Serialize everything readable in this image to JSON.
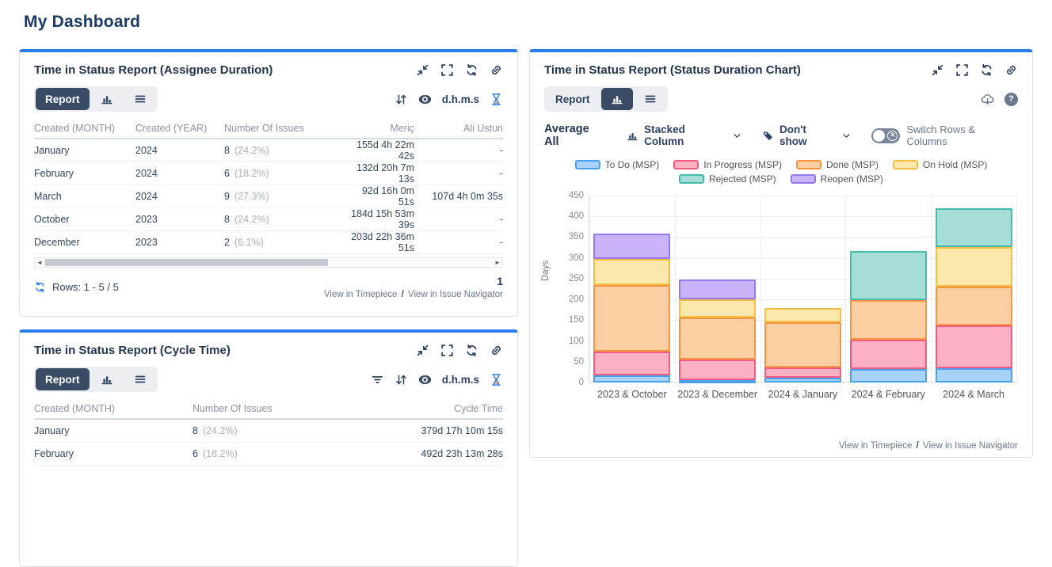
{
  "page": {
    "title": "My Dashboard"
  },
  "colors": {
    "accent_blue": "#2b7de9",
    "navy": "#22344e",
    "active_tab_bg": "#3a4b66",
    "muted": "#6b778c"
  },
  "panels": {
    "assignee": {
      "title": "Time in Status Report (Assignee Duration)",
      "action_icons": [
        "collapse-icon",
        "fullscreen-icon",
        "refresh-icon",
        "link-icon"
      ],
      "toolbar": {
        "report_label": "Report",
        "unit_label": "d.h.m.s",
        "right_icons": [
          "sort-icon",
          "eye-icon",
          "hourglass-icon"
        ]
      },
      "table": {
        "columns": [
          "Created (MONTH)",
          "Created (YEAR)",
          "Number Of Issues",
          "Meriç",
          "Ali Ustun"
        ],
        "rows": [
          {
            "month": "January",
            "year": "2024",
            "count": "8",
            "pct": "(24.2%)",
            "meric": "155d 4h 22m 42s",
            "ali": "-"
          },
          {
            "month": "February",
            "year": "2024",
            "count": "6",
            "pct": "(18.2%)",
            "meric": "132d 20h 7m 13s",
            "ali": "-"
          },
          {
            "month": "March",
            "year": "2024",
            "count": "9",
            "pct": "(27.3%)",
            "meric": "92d 16h 0m 51s",
            "ali": "107d 4h 0m 35s"
          },
          {
            "month": "October",
            "year": "2023",
            "count": "8",
            "pct": "(24.2%)",
            "meric": "184d 15h 53m 39s",
            "ali": "-"
          },
          {
            "month": "December",
            "year": "2023",
            "count": "2",
            "pct": "(6.1%)",
            "meric": "203d 22h 36m 51s",
            "ali": "-"
          }
        ]
      },
      "footer": {
        "rows_label": "Rows: 1 - 5 / 5",
        "page": "1",
        "link_timepiece": "View in Timepiece",
        "link_sep": "/",
        "link_navigator": "View in Issue Navigator"
      }
    },
    "cycle": {
      "title": "Time in Status Report (Cycle Time)",
      "action_icons": [
        "collapse-icon",
        "fullscreen-icon",
        "refresh-icon",
        "link-icon"
      ],
      "toolbar": {
        "report_label": "Report",
        "unit_label": "d.h.m.s",
        "right_icons": [
          "filter-icon",
          "sort-icon",
          "eye-icon",
          "hourglass-icon"
        ]
      },
      "table": {
        "columns": [
          "Created (MONTH)",
          "Number Of Issues",
          "Cycle Time"
        ],
        "rows": [
          {
            "month": "January",
            "count": "8",
            "pct": "(24.2%)",
            "cycle": "379d 17h 10m 15s"
          },
          {
            "month": "February",
            "count": "6",
            "pct": "(18.2%)",
            "cycle": "492d 23h 13m 28s"
          }
        ]
      }
    },
    "chart": {
      "title": "Time in Status Report (Status Duration Chart)",
      "action_icons": [
        "collapse-icon",
        "fullscreen-icon",
        "refresh-icon",
        "link-icon"
      ],
      "toolbar": {
        "report_label": "Report",
        "right_icons": [
          "cloud-download-icon",
          "help-icon"
        ],
        "help_glyph": "?"
      },
      "controls": {
        "average_label": "Average All",
        "chart_type_label": "Stacked Column",
        "tag_dropdown_label": "Don't show",
        "switch_label": "Switch Rows & Columns"
      },
      "footer": {
        "link_timepiece": "View in Timepiece",
        "link_sep": "/",
        "link_navigator": "View in Issue Navigator"
      }
    }
  },
  "chart_data": {
    "type": "bar",
    "stacked": true,
    "categories": [
      "2023 & October",
      "2023 & December",
      "2024 & January",
      "2024 & February",
      "2024 & March"
    ],
    "series": [
      {
        "name": "To Do (MSP)",
        "fill": "#A7D3F8",
        "border": "#4AA0EE",
        "values": [
          18,
          6,
          11,
          32,
          34
        ]
      },
      {
        "name": "In Progress (MSP)",
        "fill": "#FBB1C3",
        "border": "#F25B7F",
        "values": [
          57,
          50,
          26,
          71,
          103
        ]
      },
      {
        "name": "Done (MSP)",
        "fill": "#FBCFA2",
        "border": "#F5953F",
        "values": [
          160,
          100,
          108,
          95,
          94
        ]
      },
      {
        "name": "On Hold (MSP)",
        "fill": "#FCE8AD",
        "border": "#F5BE42",
        "values": [
          62,
          45,
          34,
          0,
          95
        ]
      },
      {
        "name": "Rejected (MSP)",
        "fill": "#A5DED6",
        "border": "#43BCAE",
        "values": [
          0,
          0,
          0,
          119,
          94
        ]
      },
      {
        "name": "Reopen (MSP)",
        "fill": "#C9B4F9",
        "border": "#9577F0",
        "values": [
          62,
          46,
          0,
          0,
          0
        ]
      }
    ],
    "title": "",
    "xlabel": "",
    "ylabel": "Days",
    "ylim": [
      0,
      450
    ],
    "ytick_step": 50,
    "grid": true,
    "legend_position": "top",
    "legend_wrap": 4
  }
}
